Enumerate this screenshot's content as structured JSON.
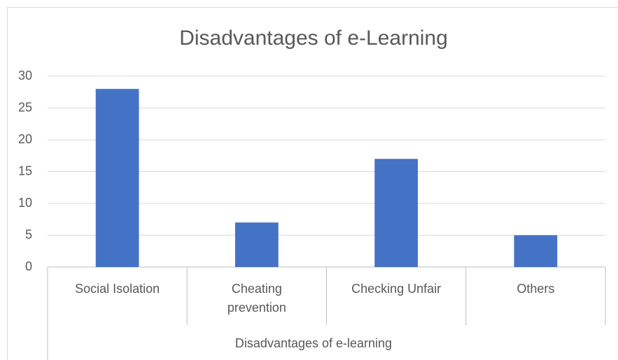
{
  "chart_data": {
    "type": "bar",
    "title": "Disadvantages of e-Learning",
    "categories": [
      "Social Isolation",
      "Cheating prevention",
      "Checking Unfair",
      "Others"
    ],
    "values": [
      28,
      7,
      17,
      5
    ],
    "color": "#4472c4",
    "xlabel": "Disadvantages of e-learning",
    "ylim": [
      0,
      30
    ],
    "yticks": [
      0,
      5,
      10,
      15,
      20,
      25,
      30
    ],
    "grid": true
  }
}
